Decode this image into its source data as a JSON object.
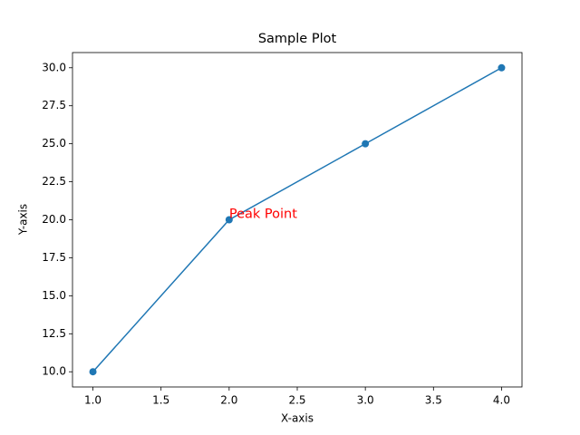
{
  "chart_data": {
    "type": "line",
    "title": "Sample Plot",
    "x_label": "X-axis",
    "y_label": "Y-axis",
    "x": [
      1,
      2,
      3,
      4
    ],
    "series": [
      {
        "color": "#1f77b4",
        "values": [
          10,
          20,
          25,
          30
        ]
      }
    ],
    "xlim": [
      0.85,
      4.15
    ],
    "xticks": [
      {
        "value": 1,
        "label": "1.0"
      },
      {
        "value": 1.5,
        "label": "1.5"
      },
      {
        "value": 2,
        "label": "2.0"
      },
      {
        "value": 2.5,
        "label": "2.5"
      },
      {
        "value": 3,
        "label": "3.0"
      },
      {
        "value": 3.5,
        "label": "3.5"
      },
      {
        "value": 4,
        "label": "4.0"
      }
    ],
    "ylim": [
      9,
      31
    ],
    "yticks": [
      {
        "value": 10,
        "label": "10.0"
      },
      {
        "value": 12.5,
        "label": "12.5"
      },
      {
        "value": 15,
        "label": "15.0"
      },
      {
        "value": 17.5,
        "label": "17.5"
      },
      {
        "value": 20,
        "label": "20.0"
      },
      {
        "value": 22.5,
        "label": "22.5"
      },
      {
        "value": 25,
        "label": "25.0"
      },
      {
        "value": 27.5,
        "label": "27.5"
      },
      {
        "value": 30,
        "label": "30.0"
      }
    ],
    "annotations": [
      {
        "text": "Peak Point",
        "x": 2,
        "y": 20,
        "color": "red"
      }
    ],
    "grid": false
  }
}
